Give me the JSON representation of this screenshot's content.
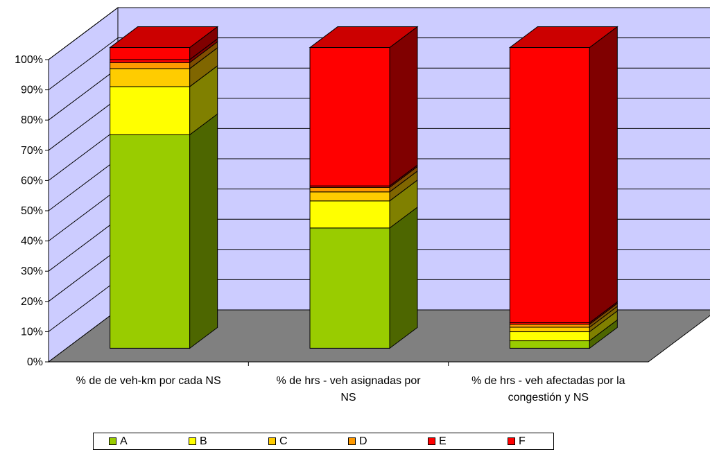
{
  "chart_data": {
    "type": "bar",
    "stacked": true,
    "three_d": true,
    "categories": [
      [
        "% de de veh-km por cada NS"
      ],
      [
        "% de hrs - veh asignadas por",
        "NS"
      ],
      [
        "% de hrs - veh afectadas por la",
        "congestión y NS"
      ]
    ],
    "series": [
      {
        "name": "A",
        "color": "#99CC00",
        "values": [
          71,
          40,
          2.5
        ]
      },
      {
        "name": "B",
        "color": "#FFFF00",
        "values": [
          16,
          9,
          3
        ]
      },
      {
        "name": "C",
        "color": "#FFCC00",
        "values": [
          6,
          3,
          1.5
        ]
      },
      {
        "name": "D",
        "color": "#FF9900",
        "values": [
          2,
          1.5,
          1
        ]
      },
      {
        "name": "E",
        "color": "#FF0000",
        "values": [
          1,
          0.5,
          0.5
        ]
      },
      {
        "name": "F",
        "color": "#FF0000",
        "values": [
          4,
          46,
          91.5
        ]
      }
    ],
    "ylim": [
      0,
      100
    ],
    "yticks": [
      "0%",
      "10%",
      "20%",
      "30%",
      "40%",
      "50%",
      "60%",
      "70%",
      "80%",
      "90%",
      "100%"
    ],
    "gridlines": true,
    "wall_color": "#CCCCFF",
    "floor_color": "#808080",
    "legend_position": "bottom"
  }
}
